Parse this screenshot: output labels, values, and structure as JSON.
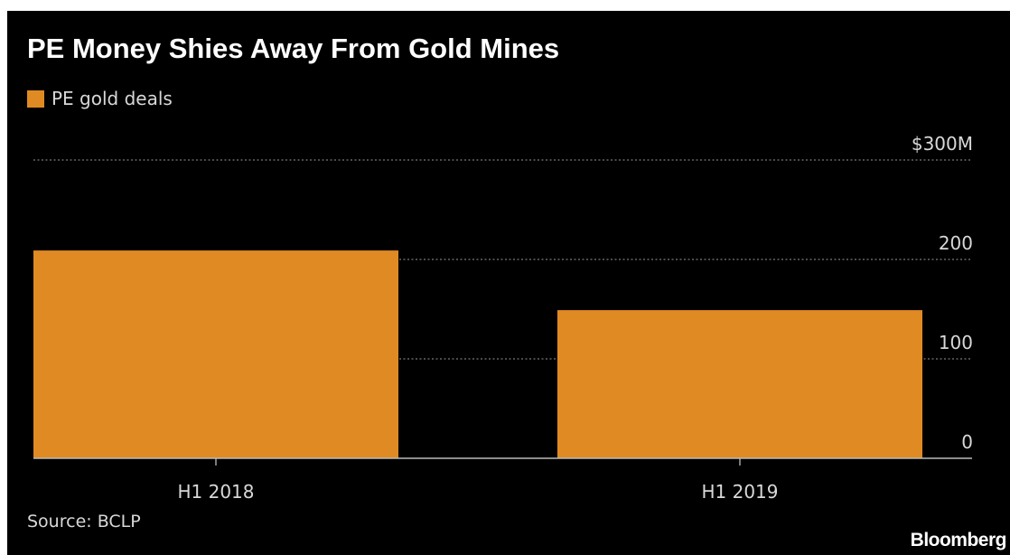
{
  "chart_data": {
    "type": "bar",
    "title": "PE Money Shies Away From Gold Mines",
    "categories": [
      "H1 2018",
      "H1 2019"
    ],
    "series": [
      {
        "name": "PE gold deals",
        "values": [
          209,
          149
        ],
        "color": "#e08a23"
      }
    ],
    "ylim": [
      0,
      300
    ],
    "yticks": [
      {
        "value": 0,
        "label": "0"
      },
      {
        "value": 100,
        "label": "100"
      },
      {
        "value": 200,
        "label": "200"
      },
      {
        "value": 300,
        "label": "$300M"
      }
    ],
    "grid": true,
    "grid_style": "dotted",
    "legend_position": "top-left",
    "source": "Source: BCLP"
  },
  "brand": "Bloomberg",
  "colors": {
    "background": "#000000",
    "text": "#d8d8d8",
    "bar": "#e08a23",
    "grid": "#7a7a7a"
  }
}
